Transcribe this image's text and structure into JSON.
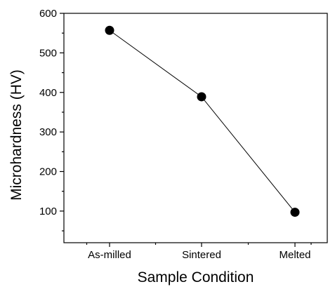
{
  "chart_data": {
    "type": "line",
    "categories": [
      "As-milled",
      "Sintered",
      "Melted"
    ],
    "values": [
      557,
      389,
      97
    ],
    "title": "",
    "xlabel": "Sample Condition",
    "ylabel": "Microhardness (HV)",
    "ylim": [
      20,
      600
    ],
    "yticks": [
      100,
      200,
      300,
      400,
      500,
      600
    ],
    "grid": false,
    "marker": "filled-circle",
    "colors": {
      "line": "#000000",
      "marker": "#000000"
    }
  }
}
